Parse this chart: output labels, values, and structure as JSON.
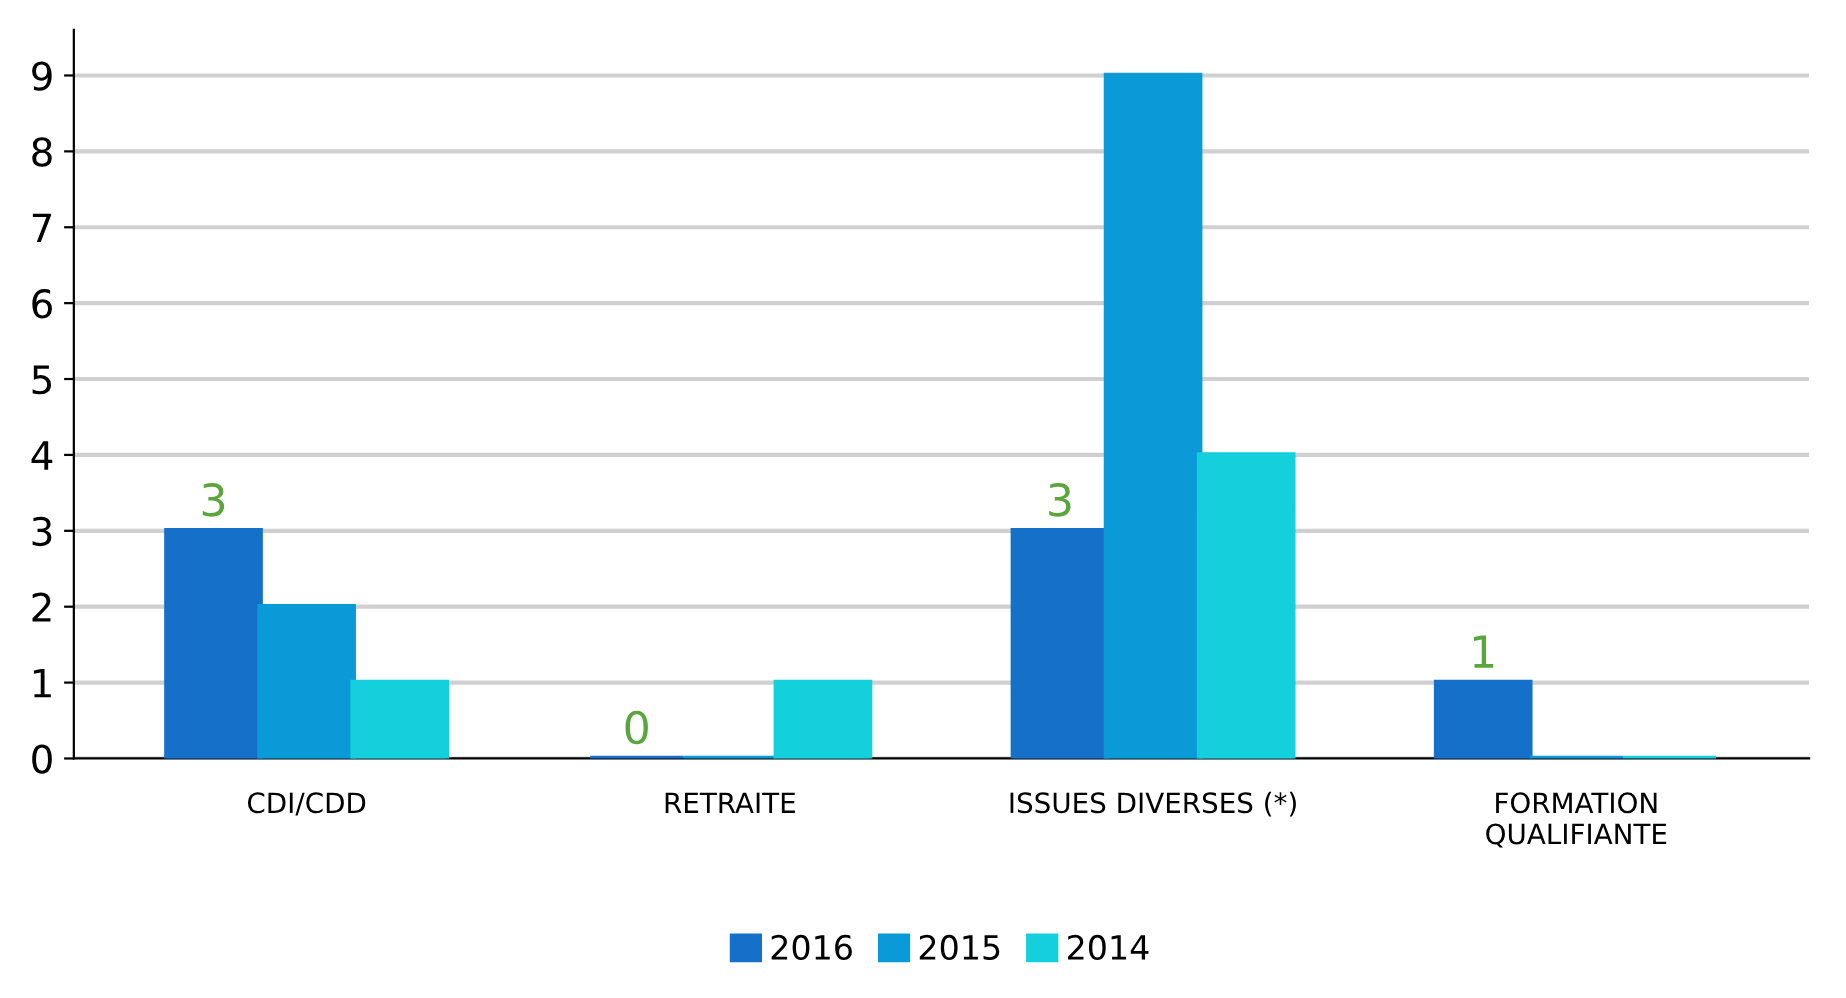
{
  "chart_data": {
    "type": "bar",
    "categories": [
      "CDI/CDD",
      "RETRAITE",
      "ISSUES DIVERSES (*)",
      "FORMATION\nQUALIFIANTE"
    ],
    "series": [
      {
        "name": "2016",
        "color": "#1470c8",
        "values": [
          3,
          0,
          3,
          1
        ],
        "value_labels": [
          "3",
          "0",
          "3",
          "1"
        ]
      },
      {
        "name": "2015",
        "color": "#0a9ad8",
        "values": [
          2,
          0,
          9,
          0
        ]
      },
      {
        "name": "2014",
        "color": "#14d0dc",
        "values": [
          1,
          1,
          4,
          0
        ]
      }
    ],
    "ylim": [
      0,
      9.6
    ],
    "yticks": [
      0,
      1,
      2,
      3,
      4,
      5,
      6,
      7,
      8,
      9
    ],
    "grid": "y",
    "legend": "bottom"
  }
}
